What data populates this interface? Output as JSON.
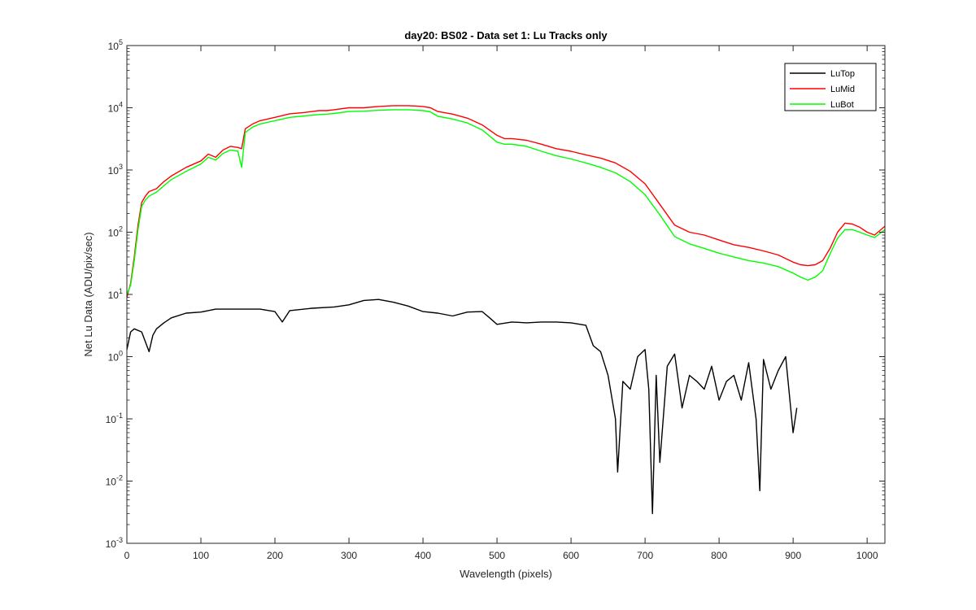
{
  "chart_data": {
    "type": "line",
    "title": "day20: BS02 - Data set 1: Lu Tracks only",
    "xlabel": "Wavelength (pixels)",
    "ylabel": "Net Lu Data (ADU/pix/sec)",
    "xlim": [
      0,
      1024
    ],
    "ylim": [
      0.001,
      100000
    ],
    "yscale": "log",
    "grid": false,
    "legend_position": "top-right",
    "x_ticks": [
      0,
      100,
      200,
      300,
      400,
      500,
      600,
      700,
      800,
      900,
      1000
    ],
    "x_tick_labels": [
      "0",
      "100",
      "200",
      "300",
      "400",
      "500",
      "600",
      "700",
      "800",
      "900",
      "1000"
    ],
    "y_ticks": [
      0.001,
      0.01,
      0.1,
      1,
      10,
      100,
      1000,
      10000,
      100000
    ],
    "y_tick_labels": [
      {
        "base": "10",
        "exp": "-3"
      },
      {
        "base": "10",
        "exp": "-2"
      },
      {
        "base": "10",
        "exp": "-1"
      },
      {
        "base": "10",
        "exp": "0"
      },
      {
        "base": "10",
        "exp": "1"
      },
      {
        "base": "10",
        "exp": "2"
      },
      {
        "base": "10",
        "exp": "3"
      },
      {
        "base": "10",
        "exp": "4"
      },
      {
        "base": "10",
        "exp": "5"
      }
    ],
    "series": [
      {
        "name": "LuTop",
        "color": "#000000",
        "x": [
          0,
          5,
          10,
          20,
          30,
          35,
          40,
          50,
          60,
          80,
          100,
          120,
          150,
          180,
          200,
          210,
          220,
          250,
          280,
          300,
          320,
          340,
          360,
          380,
          400,
          420,
          440,
          460,
          480,
          490,
          500,
          520,
          540,
          560,
          580,
          600,
          620,
          630,
          640,
          650,
          660,
          663,
          670,
          680,
          690,
          700,
          705,
          710,
          715,
          720,
          730,
          740,
          750,
          760,
          770,
          780,
          790,
          800,
          810,
          820,
          830,
          840,
          850,
          855,
          860,
          870,
          880,
          890,
          900,
          905
        ],
        "y": [
          1.3,
          2.5,
          2.8,
          2.5,
          1.2,
          2.2,
          2.8,
          3.5,
          4.2,
          5.0,
          5.2,
          5.8,
          5.8,
          5.8,
          5.3,
          3.6,
          5.5,
          6.0,
          6.3,
          6.8,
          8.0,
          8.3,
          7.5,
          6.5,
          5.3,
          5.0,
          4.5,
          5.2,
          5.3,
          4.2,
          3.3,
          3.6,
          3.5,
          3.6,
          3.6,
          3.5,
          3.2,
          1.5,
          1.2,
          0.5,
          0.1,
          0.014,
          0.4,
          0.3,
          1.0,
          1.3,
          0.3,
          0.003,
          0.5,
          0.02,
          0.7,
          1.1,
          0.15,
          0.5,
          0.4,
          0.3,
          0.7,
          0.2,
          0.4,
          0.5,
          0.2,
          0.8,
          0.1,
          0.007,
          0.9,
          0.3,
          0.6,
          1.0,
          0.06,
          0.15
        ]
      },
      {
        "name": "LuMid",
        "color": "#ff0000",
        "x": [
          0,
          5,
          10,
          15,
          20,
          25,
          30,
          40,
          50,
          60,
          80,
          100,
          110,
          120,
          130,
          140,
          150,
          155,
          160,
          170,
          180,
          200,
          220,
          240,
          260,
          270,
          280,
          300,
          320,
          340,
          360,
          380,
          400,
          410,
          420,
          440,
          460,
          480,
          500,
          510,
          520,
          540,
          560,
          580,
          600,
          620,
          640,
          660,
          680,
          700,
          720,
          740,
          760,
          780,
          800,
          820,
          840,
          860,
          880,
          900,
          910,
          920,
          930,
          940,
          950,
          960,
          970,
          980,
          990,
          1000,
          1010,
          1024
        ],
        "y": [
          9,
          15,
          40,
          130,
          300,
          380,
          450,
          500,
          650,
          800,
          1100,
          1400,
          1800,
          1600,
          2100,
          2400,
          2300,
          2200,
          4600,
          5500,
          6200,
          7000,
          8000,
          8400,
          9000,
          9000,
          9300,
          10000,
          10000,
          10500,
          10800,
          10800,
          10500,
          10000,
          8700,
          7900,
          6800,
          5300,
          3600,
          3200,
          3200,
          3000,
          2600,
          2200,
          2000,
          1750,
          1550,
          1300,
          950,
          600,
          280,
          130,
          100,
          90,
          75,
          63,
          57,
          50,
          43,
          33,
          30,
          29,
          30,
          35,
          55,
          100,
          140,
          135,
          120,
          100,
          90,
          125
        ]
      },
      {
        "name": "LuBot",
        "color": "#00ff00",
        "x": [
          0,
          5,
          10,
          15,
          20,
          25,
          30,
          40,
          50,
          60,
          80,
          100,
          110,
          120,
          130,
          140,
          150,
          155,
          160,
          170,
          180,
          200,
          220,
          240,
          260,
          270,
          280,
          300,
          320,
          340,
          360,
          380,
          400,
          410,
          420,
          440,
          460,
          480,
          500,
          510,
          520,
          540,
          560,
          580,
          600,
          620,
          640,
          660,
          680,
          700,
          720,
          740,
          760,
          780,
          800,
          820,
          840,
          860,
          880,
          900,
          910,
          920,
          930,
          940,
          950,
          960,
          970,
          980,
          990,
          1000,
          1010,
          1024
        ],
        "y": [
          10,
          14,
          35,
          110,
          260,
          330,
          380,
          440,
          560,
          700,
          950,
          1250,
          1600,
          1450,
          1850,
          2100,
          2000,
          1100,
          4000,
          4900,
          5500,
          6200,
          7000,
          7400,
          7800,
          7900,
          8100,
          8700,
          8800,
          9100,
          9300,
          9300,
          9000,
          8600,
          7300,
          6600,
          5700,
          4400,
          2800,
          2600,
          2600,
          2400,
          2000,
          1700,
          1500,
          1300,
          1100,
          900,
          650,
          400,
          190,
          85,
          65,
          55,
          46,
          40,
          35,
          32,
          28,
          22,
          19,
          17,
          19,
          24,
          45,
          80,
          110,
          110,
          100,
          90,
          82,
          110
        ]
      }
    ]
  }
}
